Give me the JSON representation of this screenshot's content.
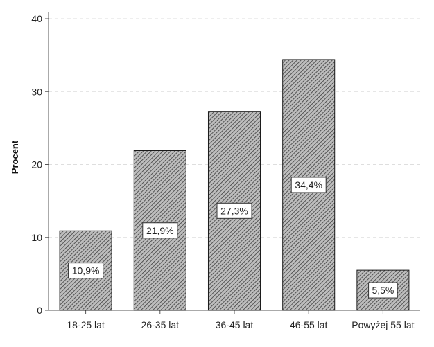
{
  "chart_data": {
    "type": "bar",
    "title": "",
    "xlabel": "",
    "ylabel": "Procent",
    "ylim": [
      0,
      40
    ],
    "yticks": [
      0,
      10,
      20,
      30,
      40
    ],
    "categories": [
      "18-25 lat",
      "26-35 lat",
      "36-45 lat",
      "46-55 lat",
      "Powyżej 55 lat"
    ],
    "values": [
      10.9,
      21.9,
      27.3,
      34.4,
      5.5
    ],
    "data_labels": [
      "10,9%",
      "21,9%",
      "27,3%",
      "34,4%",
      "5,5%"
    ],
    "grid": "horizontal-dashed",
    "legend": "none",
    "colors": {
      "bar_fill": "#bdbdbd",
      "bar_hatch": "#3a3a3a",
      "bar_stroke": "#1a1a1a",
      "grid": "#dedede",
      "axis": "#555555"
    }
  }
}
